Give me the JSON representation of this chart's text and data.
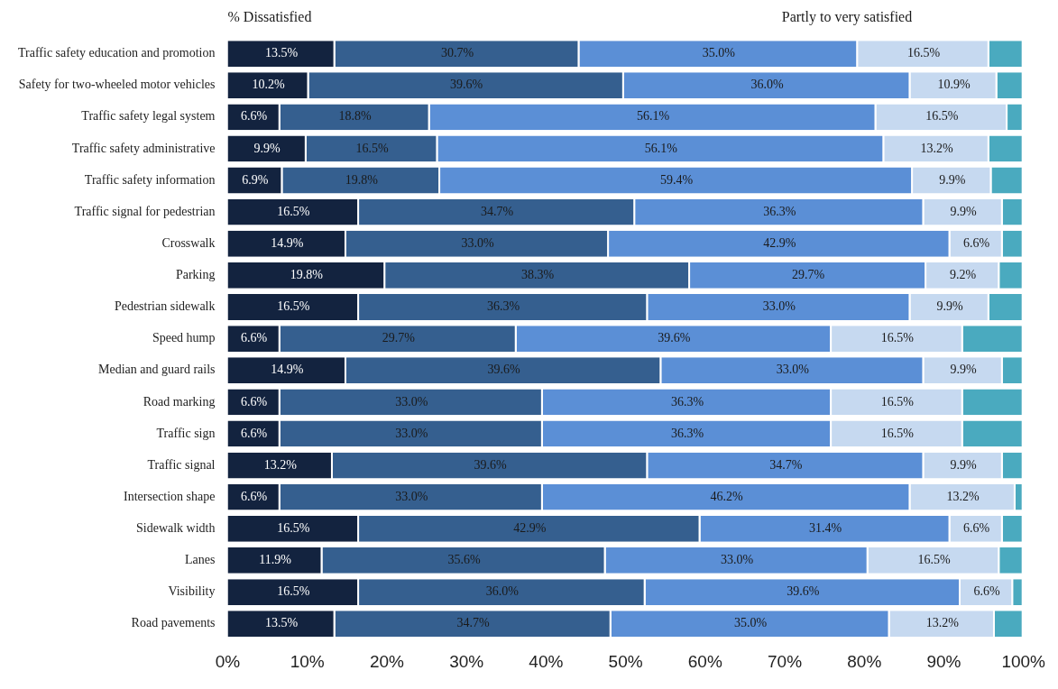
{
  "chart_data": {
    "type": "bar",
    "orientation": "horizontal",
    "stacked": true,
    "categories": [
      "Traffic safety education and promotion",
      "Safety for two-wheeled motor vehicles",
      "Traffic safety legal system",
      "Traffic safety administrative",
      "Traffic safety information",
      "Traffic signal for pedestrian",
      "Crosswalk",
      "Parking",
      "Pedestrian sidewalk",
      "Speed hump",
      "Median and guard rails",
      "Road marking",
      "Traffic sign",
      "Traffic signal",
      "Intersection shape",
      "Sidewalk width",
      "Lanes",
      "Visibility",
      "Road pavements"
    ],
    "series": [
      {
        "color": "#13233f",
        "values": [
          13.5,
          10.2,
          6.6,
          9.9,
          6.9,
          16.5,
          14.9,
          19.8,
          16.5,
          6.6,
          14.9,
          6.6,
          6.6,
          13.2,
          6.6,
          16.5,
          11.9,
          16.5,
          13.5
        ],
        "value_labels": [
          "13.5%",
          "10.2%",
          "6.6%",
          "9.9%",
          "6.9%",
          "16.5%",
          "14.9%",
          "19.8%",
          "16.5%",
          "6.6%",
          "14.9%",
          "6.6%",
          "6.6%",
          "13.2%",
          "6.6%",
          "16.5%",
          "11.9%",
          "16.5%",
          "13.5%"
        ]
      },
      {
        "color": "#355f8f",
        "values": [
          30.7,
          39.6,
          18.8,
          16.5,
          19.8,
          34.7,
          33.0,
          38.3,
          36.3,
          29.7,
          39.6,
          33.0,
          33.0,
          39.6,
          33.0,
          42.9,
          35.6,
          36.0,
          34.7
        ],
        "value_labels": [
          "30.7%",
          "39.6%",
          "18.8%",
          "16.5%",
          "19.8%",
          "34.7%",
          "33.0%",
          "38.3%",
          "36.3%",
          "29.7%",
          "39.6%",
          "33.0%",
          "33.0%",
          "39.6%",
          "33.0%",
          "42.9%",
          "35.6%",
          "36.0%",
          "34.7%"
        ]
      },
      {
        "color": "#5b8fd6",
        "values": [
          35.0,
          36.0,
          56.1,
          56.1,
          59.4,
          36.3,
          42.9,
          29.7,
          33.0,
          39.6,
          33.0,
          36.3,
          36.3,
          34.7,
          46.2,
          31.4,
          33.0,
          39.6,
          35.0
        ],
        "value_labels": [
          "35.0%",
          "36.0%",
          "56.1%",
          "56.1%",
          "59.4%",
          "36.3%",
          "42.9%",
          "29.7%",
          "33.0%",
          "39.6%",
          "33.0%",
          "36.3%",
          "36.3%",
          "34.7%",
          "46.2%",
          "31.4%",
          "33.0%",
          "39.6%",
          "35.0%"
        ]
      },
      {
        "color": "#c6d9f0",
        "values": [
          16.5,
          10.9,
          16.5,
          13.2,
          9.9,
          9.9,
          6.6,
          9.2,
          9.9,
          16.5,
          9.9,
          16.5,
          16.5,
          9.9,
          13.2,
          6.6,
          16.5,
          6.6,
          13.2
        ],
        "value_labels": [
          "16.5%",
          "10.9%",
          "16.5%",
          "13.2%",
          "9.9%",
          "9.9%",
          "6.6%",
          "9.2%",
          "9.9%",
          "16.5%",
          "9.9%",
          "16.5%",
          "16.5%",
          "9.9%",
          "13.2%",
          "6.6%",
          "16.5%",
          "6.6%",
          "13.2%"
        ]
      },
      {
        "color": "#4aaabf",
        "values": [
          4.3,
          3.3,
          2.0,
          4.3,
          4.0,
          2.6,
          2.6,
          3.0,
          4.3,
          7.6,
          2.6,
          7.6,
          7.6,
          2.6,
          1.0,
          2.6,
          3.0,
          1.3,
          3.6
        ]
      }
    ],
    "xlim": [
      0,
      100
    ],
    "xticks": [
      {
        "value": 0,
        "label": "0%"
      },
      {
        "value": 10,
        "label": "10%"
      },
      {
        "value": 20,
        "label": "20%"
      },
      {
        "value": 30,
        "label": "30%"
      },
      {
        "value": 40,
        "label": "40%"
      },
      {
        "value": 50,
        "label": "50%"
      },
      {
        "value": 60,
        "label": "60%"
      },
      {
        "value": 70,
        "label": "70%"
      },
      {
        "value": 80,
        "label": "80%"
      },
      {
        "value": 90,
        "label": "90%"
      },
      {
        "value": 100,
        "label": "100%"
      }
    ],
    "annotations": [
      "% Dissatisfied",
      "Partly to very satisfied"
    ],
    "grid": false,
    "legend": false
  }
}
